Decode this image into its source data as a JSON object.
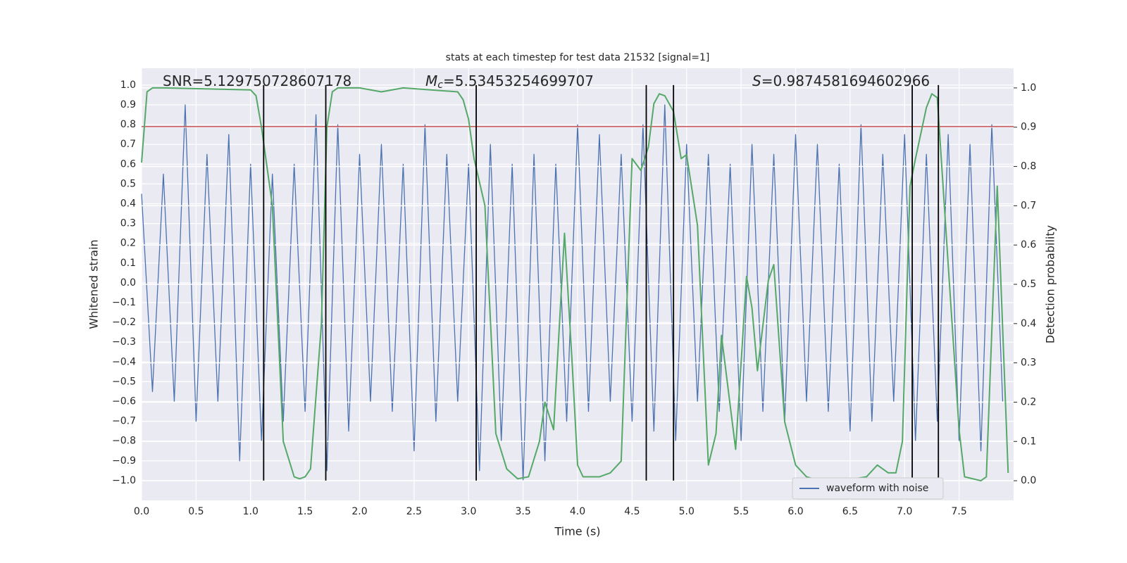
{
  "chart_data": {
    "type": "line",
    "title": "stats at each timestep for test data 21532 [signal=1]",
    "xlabel": "Time (s)",
    "ylabel": "Whitened strain",
    "y2label": "Detection probability",
    "xlim": [
      0,
      8
    ],
    "ylim": [
      -1.1,
      1.085
    ],
    "y2lim": [
      -0.05,
      1.05
    ],
    "xticks": [
      {
        "value": 0,
        "label": "0.0"
      },
      {
        "value": 0.5,
        "label": "0.5"
      },
      {
        "value": 1,
        "label": "1.0"
      },
      {
        "value": 1.5,
        "label": "1.5"
      },
      {
        "value": 2,
        "label": "2.0"
      },
      {
        "value": 2.5,
        "label": "2.5"
      },
      {
        "value": 3,
        "label": "3.0"
      },
      {
        "value": 3.5,
        "label": "3.5"
      },
      {
        "value": 4,
        "label": "4.0"
      },
      {
        "value": 4.5,
        "label": "4.5"
      },
      {
        "value": 5,
        "label": "5.0"
      },
      {
        "value": 5.5,
        "label": "5.5"
      },
      {
        "value": 6,
        "label": "6.0"
      },
      {
        "value": 6.5,
        "label": "6.5"
      },
      {
        "value": 7,
        "label": "7.0"
      },
      {
        "value": 7.5,
        "label": "7.5"
      }
    ],
    "yticks": [
      {
        "value": -1,
        "label": "−1.0"
      },
      {
        "value": -0.9,
        "label": "−0.9"
      },
      {
        "value": -0.8,
        "label": "−0.8"
      },
      {
        "value": -0.7,
        "label": "−0.7"
      },
      {
        "value": -0.6,
        "label": "−0.6"
      },
      {
        "value": -0.5,
        "label": "−0.5"
      },
      {
        "value": -0.4,
        "label": "−0.4"
      },
      {
        "value": -0.3,
        "label": "−0.3"
      },
      {
        "value": -0.2,
        "label": "−0.2"
      },
      {
        "value": -0.1,
        "label": "−0.1"
      },
      {
        "value": 0,
        "label": "0.0"
      },
      {
        "value": 0.1,
        "label": "0.1"
      },
      {
        "value": 0.2,
        "label": "0.2"
      },
      {
        "value": 0.3,
        "label": "0.3"
      },
      {
        "value": 0.4,
        "label": "0.4"
      },
      {
        "value": 0.5,
        "label": "0.5"
      },
      {
        "value": 0.6,
        "label": "0.6"
      },
      {
        "value": 0.7,
        "label": "0.7"
      },
      {
        "value": 0.8,
        "label": "0.8"
      },
      {
        "value": 0.9,
        "label": "0.9"
      },
      {
        "value": 1,
        "label": "1.0"
      }
    ],
    "y2ticks": [
      {
        "value": 0,
        "label": "0.0"
      },
      {
        "value": 0.1,
        "label": "0.1"
      },
      {
        "value": 0.2,
        "label": "0.2"
      },
      {
        "value": 0.3,
        "label": "0.3"
      },
      {
        "value": 0.4,
        "label": "0.4"
      },
      {
        "value": 0.5,
        "label": "0.5"
      },
      {
        "value": 0.6,
        "label": "0.6"
      },
      {
        "value": 0.7,
        "label": "0.7"
      },
      {
        "value": 0.8,
        "label": "0.8"
      },
      {
        "value": 0.9,
        "label": "0.9"
      },
      {
        "value": 1,
        "label": "1.0"
      }
    ],
    "grid": true,
    "legend": "lower right",
    "series": [
      {
        "name": "waveform with noise",
        "color": "#4c72b0",
        "x": [
          0,
          0.1,
          0.2,
          0.3,
          0.4,
          0.5,
          0.6,
          0.7,
          0.8,
          0.9,
          1,
          1.1,
          1.2,
          1.3,
          1.4,
          1.5,
          1.6,
          1.7,
          1.8,
          1.9,
          2,
          2.1,
          2.2,
          2.3,
          2.4,
          2.5,
          2.6,
          2.7,
          2.8,
          2.9,
          3,
          3.1,
          3.2,
          3.3,
          3.4,
          3.5,
          3.6,
          3.7,
          3.8,
          3.9,
          4,
          4.1,
          4.2,
          4.3,
          4.4,
          4.5,
          4.6,
          4.7,
          4.8,
          4.9,
          5,
          5.1,
          5.2,
          5.3,
          5.4,
          5.5,
          5.6,
          5.7,
          5.8,
          5.9,
          6,
          6.1,
          6.2,
          6.3,
          6.4,
          6.5,
          6.6,
          6.7,
          6.8,
          6.9,
          7,
          7.1,
          7.2,
          7.3,
          7.4,
          7.5,
          7.6,
          7.7,
          7.8,
          7.9
        ],
        "values": [
          0.45,
          -0.55,
          0.55,
          -0.6,
          0.9,
          -0.7,
          0.65,
          -0.6,
          0.75,
          -0.9,
          0.6,
          -0.8,
          0.55,
          -0.7,
          0.6,
          -0.65,
          0.85,
          -0.95,
          0.8,
          -0.75,
          0.65,
          -0.6,
          0.7,
          -0.65,
          0.6,
          -0.85,
          0.8,
          -0.7,
          0.65,
          -0.6,
          0.6,
          -0.95,
          0.7,
          -0.8,
          0.6,
          -1.0,
          0.65,
          -0.9,
          0.6,
          -0.7,
          0.8,
          -0.65,
          0.75,
          -0.6,
          0.65,
          -0.7,
          0.8,
          -0.75,
          0.9,
          -0.8,
          0.7,
          -0.6,
          0.65,
          -0.65,
          0.6,
          -0.8,
          0.7,
          -0.65,
          0.65,
          -0.7,
          0.75,
          -0.6,
          0.7,
          -0.65,
          0.6,
          -0.75,
          0.8,
          -0.7,
          0.65,
          -0.6,
          0.75,
          -0.8,
          0.65,
          -0.7,
          0.75,
          -0.8,
          0.7,
          -0.85,
          0.8,
          -0.6
        ]
      },
      {
        "color": "#55a868",
        "axis": "y2",
        "x": [
          0,
          0.05,
          0.1,
          0.2,
          1.0,
          1.05,
          1.1,
          1.2,
          1.3,
          1.4,
          1.45,
          1.5,
          1.55,
          1.65,
          1.7,
          1.75,
          1.8,
          2.0,
          2.2,
          2.4,
          2.9,
          2.95,
          3.0,
          3.05,
          3.15,
          3.25,
          3.35,
          3.45,
          3.55,
          3.65,
          3.7,
          3.78,
          3.88,
          3.95,
          4.0,
          4.05,
          4.2,
          4.3,
          4.4,
          4.5,
          4.58,
          4.65,
          4.7,
          4.75,
          4.8,
          4.88,
          4.95,
          5.0,
          5.1,
          5.2,
          5.27,
          5.32,
          5.45,
          5.55,
          5.6,
          5.65,
          5.75,
          5.8,
          5.9,
          6.0,
          6.1,
          6.2,
          6.5,
          6.65,
          6.75,
          6.85,
          6.92,
          6.98,
          7.05,
          7.1,
          7.2,
          7.25,
          7.3,
          7.4,
          7.5,
          7.55,
          7.7,
          7.75,
          7.85,
          7.95
        ],
        "values": [
          0.81,
          0.99,
          1.0,
          1.0,
          0.995,
          0.98,
          0.9,
          0.7,
          0.1,
          0.01,
          0.005,
          0.01,
          0.03,
          0.4,
          0.9,
          0.99,
          1.0,
          1.0,
          0.99,
          1.0,
          0.99,
          0.97,
          0.92,
          0.82,
          0.7,
          0.12,
          0.03,
          0.005,
          0.01,
          0.1,
          0.2,
          0.13,
          0.63,
          0.3,
          0.04,
          0.01,
          0.01,
          0.02,
          0.05,
          0.82,
          0.79,
          0.85,
          0.96,
          0.985,
          0.98,
          0.94,
          0.82,
          0.83,
          0.65,
          0.04,
          0.12,
          0.37,
          0.08,
          0.52,
          0.44,
          0.28,
          0.51,
          0.55,
          0.15,
          0.04,
          0.01,
          0.002,
          0.003,
          0.01,
          0.04,
          0.02,
          0.02,
          0.1,
          0.75,
          0.82,
          0.95,
          0.985,
          0.975,
          0.55,
          0.13,
          0.01,
          0.0,
          0.01,
          0.75,
          0.02
        ]
      }
    ],
    "hline": {
      "y": 0.79,
      "color": "#c44e52"
    },
    "vlines": {
      "x": [
        1.12,
        1.69,
        3.07,
        4.63,
        4.88,
        7.07,
        7.31
      ],
      "ymin": -1,
      "ymax": 1,
      "color": "#000000"
    },
    "annotations": [
      {
        "text": "SNR=5.129750728607178"
      },
      {
        "symbol": "M",
        "subscript": "c",
        "text": "=5.53453254699707"
      },
      {
        "symbol": "S",
        "text": "=0.9874581694602966"
      }
    ]
  }
}
